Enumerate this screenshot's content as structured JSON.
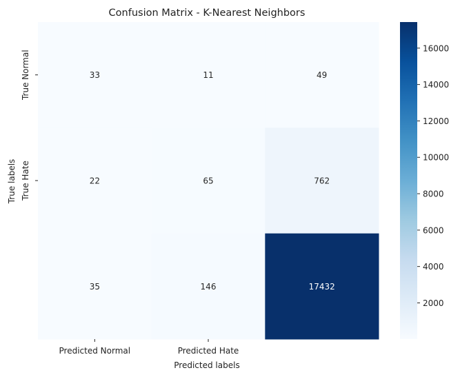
{
  "chart_data": {
    "type": "heatmap",
    "title": "Confusion Matrix - K-Nearest Neighbors",
    "xlabel": "Predicted labels",
    "ylabel": "True labels",
    "x_tick_labels": [
      "Predicted Normal",
      "Predicted Hate",
      ""
    ],
    "y_tick_labels": [
      "True Normal",
      "True Hate",
      ""
    ],
    "values": [
      [
        33,
        11,
        49
      ],
      [
        22,
        65,
        762
      ],
      [
        35,
        146,
        17432
      ]
    ],
    "colormap": "Blues",
    "color_range": [
      11,
      17432
    ],
    "colorbar_ticks": [
      "2000",
      "4000",
      "6000",
      "8000",
      "10000",
      "12000",
      "14000",
      "16000"
    ],
    "colorbar_tick_values": [
      2000,
      4000,
      6000,
      8000,
      10000,
      12000,
      14000,
      16000
    ],
    "annotation_colors": {
      "light": "#ffffff",
      "dark": "#262626"
    }
  }
}
